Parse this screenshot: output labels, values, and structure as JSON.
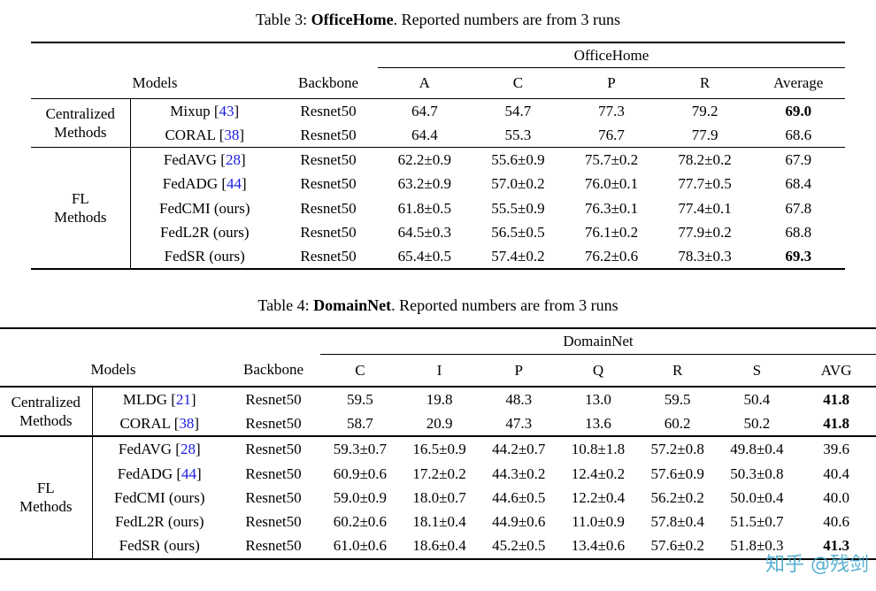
{
  "colors": {
    "citation": "#1a1ae0",
    "watermark": "#3aa4c8",
    "rule": "#000000"
  },
  "captions": [
    {
      "label": "Table 3: ",
      "dataset": "OfficeHome",
      "rest": ". Reported numbers are from 3 runs"
    },
    {
      "label": "Table 4: ",
      "dataset": "DomainNet",
      "rest": ". Reported numbers are from 3 runs"
    }
  ],
  "tables": [
    {
      "spanner": "OfficeHome",
      "headers": {
        "models": "Models",
        "backbone": "Backbone"
      },
      "columns": [
        "A",
        "C",
        "P",
        "R",
        "Average"
      ],
      "groups": [
        {
          "label": "Centralized\nMethods",
          "rows": [
            {
              "method": "Mixup",
              "cite": "43",
              "backbone": "Resnet50",
              "values": [
                "64.7",
                "54.7",
                "77.3",
                "79.2",
                "69.0"
              ],
              "bold": [
                4
              ]
            },
            {
              "method": "CORAL",
              "cite": "38",
              "backbone": "Resnet50",
              "values": [
                "64.4",
                "55.3",
                "76.7",
                "77.9",
                "68.6"
              ],
              "bold": []
            }
          ]
        },
        {
          "label": "FL\nMethods",
          "rows": [
            {
              "method": "FedAVG",
              "cite": "28",
              "backbone": "Resnet50",
              "values": [
                "62.2±0.9",
                "55.6±0.9",
                "75.7±0.2",
                "78.2±0.2",
                "67.9"
              ],
              "bold": []
            },
            {
              "method": "FedADG",
              "cite": "44",
              "backbone": "Resnet50",
              "values": [
                "63.2±0.9",
                "57.0±0.2",
                "76.0±0.1",
                "77.7±0.5",
                "68.4"
              ],
              "bold": []
            },
            {
              "method": "FedCMI (ours)",
              "cite": "",
              "backbone": "Resnet50",
              "values": [
                "61.8±0.5",
                "55.5±0.9",
                "76.3±0.1",
                "77.4±0.1",
                "67.8"
              ],
              "bold": []
            },
            {
              "method": "FedL2R (ours)",
              "cite": "",
              "backbone": "Resnet50",
              "values": [
                "64.5±0.3",
                "56.5±0.5",
                "76.1±0.2",
                "77.9±0.2",
                "68.8"
              ],
              "bold": []
            },
            {
              "method": "FedSR (ours)",
              "cite": "",
              "backbone": "Resnet50",
              "values": [
                "65.4±0.5",
                "57.4±0.2",
                "76.2±0.6",
                "78.3±0.3",
                "69.3"
              ],
              "bold": [
                4
              ]
            }
          ]
        }
      ]
    },
    {
      "spanner": "DomainNet",
      "headers": {
        "models": "Models",
        "backbone": "Backbone"
      },
      "columns": [
        "C",
        "I",
        "P",
        "Q",
        "R",
        "S",
        "AVG"
      ],
      "groups": [
        {
          "label": "Centralized\nMethods",
          "rows": [
            {
              "method": "MLDG",
              "cite": "21",
              "backbone": "Resnet50",
              "values": [
                "59.5",
                "19.8",
                "48.3",
                "13.0",
                "59.5",
                "50.4",
                "41.8"
              ],
              "bold": [
                6
              ]
            },
            {
              "method": "CORAL",
              "cite": "38",
              "backbone": "Resnet50",
              "values": [
                "58.7",
                "20.9",
                "47.3",
                "13.6",
                "60.2",
                "50.2",
                "41.8"
              ],
              "bold": [
                6
              ]
            }
          ]
        },
        {
          "label": "FL\nMethods",
          "rows": [
            {
              "method": "FedAVG",
              "cite": "28",
              "backbone": "Resnet50",
              "values": [
                "59.3±0.7",
                "16.5±0.9",
                "44.2±0.7",
                "10.8±1.8",
                "57.2±0.8",
                "49.8±0.4",
                "39.6"
              ],
              "bold": []
            },
            {
              "method": "FedADG",
              "cite": "44",
              "backbone": "Resnet50",
              "values": [
                "60.9±0.6",
                "17.2±0.2",
                "44.3±0.2",
                "12.4±0.2",
                "57.6±0.9",
                "50.3±0.8",
                "40.4"
              ],
              "bold": []
            },
            {
              "method": "FedCMI (ours)",
              "cite": "",
              "backbone": "Resnet50",
              "values": [
                "59.0±0.9",
                "18.0±0.7",
                "44.6±0.5",
                "12.2±0.4",
                "56.2±0.2",
                "50.0±0.4",
                "40.0"
              ],
              "bold": []
            },
            {
              "method": "FedL2R (ours)",
              "cite": "",
              "backbone": "Resnet50",
              "values": [
                "60.2±0.6",
                "18.1±0.4",
                "44.9±0.6",
                "11.0±0.9",
                "57.8±0.4",
                "51.5±0.7",
                "40.6"
              ],
              "bold": []
            },
            {
              "method": "FedSR (ours)",
              "cite": "",
              "backbone": "Resnet50",
              "values": [
                "61.0±0.6",
                "18.6±0.4",
                "45.2±0.5",
                "13.4±0.6",
                "57.6±0.2",
                "51.8±0.3",
                "41.3"
              ],
              "bold": [
                6
              ]
            }
          ]
        }
      ]
    }
  ],
  "watermark": {
    "text": "知乎 @残剑"
  }
}
